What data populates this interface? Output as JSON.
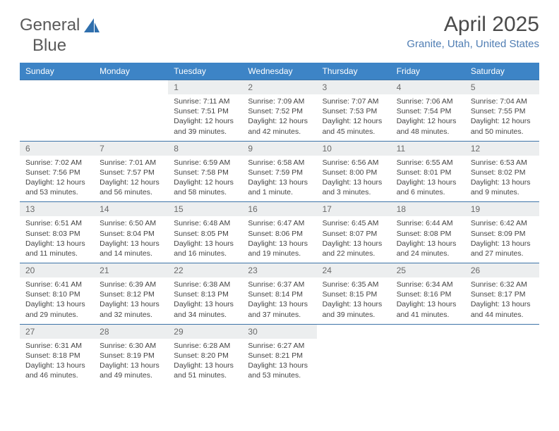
{
  "brand": {
    "part1": "General",
    "part2": "Blue"
  },
  "title": "April 2025",
  "location": "Granite, Utah, United States",
  "colors": {
    "header_bg": "#3d84c6",
    "header_text": "#ffffff",
    "row_border": "#3d74a8",
    "daynum_bg": "#eceeef",
    "location_text": "#4f7db3",
    "logo_blue": "#2f6fad"
  },
  "weekdays": [
    "Sunday",
    "Monday",
    "Tuesday",
    "Wednesday",
    "Thursday",
    "Friday",
    "Saturday"
  ],
  "weeks": [
    [
      {
        "empty": true
      },
      {
        "empty": true
      },
      {
        "num": "1",
        "sunrise": "Sunrise: 7:11 AM",
        "sunset": "Sunset: 7:51 PM",
        "daylight": "Daylight: 12 hours and 39 minutes."
      },
      {
        "num": "2",
        "sunrise": "Sunrise: 7:09 AM",
        "sunset": "Sunset: 7:52 PM",
        "daylight": "Daylight: 12 hours and 42 minutes."
      },
      {
        "num": "3",
        "sunrise": "Sunrise: 7:07 AM",
        "sunset": "Sunset: 7:53 PM",
        "daylight": "Daylight: 12 hours and 45 minutes."
      },
      {
        "num": "4",
        "sunrise": "Sunrise: 7:06 AM",
        "sunset": "Sunset: 7:54 PM",
        "daylight": "Daylight: 12 hours and 48 minutes."
      },
      {
        "num": "5",
        "sunrise": "Sunrise: 7:04 AM",
        "sunset": "Sunset: 7:55 PM",
        "daylight": "Daylight: 12 hours and 50 minutes."
      }
    ],
    [
      {
        "num": "6",
        "sunrise": "Sunrise: 7:02 AM",
        "sunset": "Sunset: 7:56 PM",
        "daylight": "Daylight: 12 hours and 53 minutes."
      },
      {
        "num": "7",
        "sunrise": "Sunrise: 7:01 AM",
        "sunset": "Sunset: 7:57 PM",
        "daylight": "Daylight: 12 hours and 56 minutes."
      },
      {
        "num": "8",
        "sunrise": "Sunrise: 6:59 AM",
        "sunset": "Sunset: 7:58 PM",
        "daylight": "Daylight: 12 hours and 58 minutes."
      },
      {
        "num": "9",
        "sunrise": "Sunrise: 6:58 AM",
        "sunset": "Sunset: 7:59 PM",
        "daylight": "Daylight: 13 hours and 1 minute."
      },
      {
        "num": "10",
        "sunrise": "Sunrise: 6:56 AM",
        "sunset": "Sunset: 8:00 PM",
        "daylight": "Daylight: 13 hours and 3 minutes."
      },
      {
        "num": "11",
        "sunrise": "Sunrise: 6:55 AM",
        "sunset": "Sunset: 8:01 PM",
        "daylight": "Daylight: 13 hours and 6 minutes."
      },
      {
        "num": "12",
        "sunrise": "Sunrise: 6:53 AM",
        "sunset": "Sunset: 8:02 PM",
        "daylight": "Daylight: 13 hours and 9 minutes."
      }
    ],
    [
      {
        "num": "13",
        "sunrise": "Sunrise: 6:51 AM",
        "sunset": "Sunset: 8:03 PM",
        "daylight": "Daylight: 13 hours and 11 minutes."
      },
      {
        "num": "14",
        "sunrise": "Sunrise: 6:50 AM",
        "sunset": "Sunset: 8:04 PM",
        "daylight": "Daylight: 13 hours and 14 minutes."
      },
      {
        "num": "15",
        "sunrise": "Sunrise: 6:48 AM",
        "sunset": "Sunset: 8:05 PM",
        "daylight": "Daylight: 13 hours and 16 minutes."
      },
      {
        "num": "16",
        "sunrise": "Sunrise: 6:47 AM",
        "sunset": "Sunset: 8:06 PM",
        "daylight": "Daylight: 13 hours and 19 minutes."
      },
      {
        "num": "17",
        "sunrise": "Sunrise: 6:45 AM",
        "sunset": "Sunset: 8:07 PM",
        "daylight": "Daylight: 13 hours and 22 minutes."
      },
      {
        "num": "18",
        "sunrise": "Sunrise: 6:44 AM",
        "sunset": "Sunset: 8:08 PM",
        "daylight": "Daylight: 13 hours and 24 minutes."
      },
      {
        "num": "19",
        "sunrise": "Sunrise: 6:42 AM",
        "sunset": "Sunset: 8:09 PM",
        "daylight": "Daylight: 13 hours and 27 minutes."
      }
    ],
    [
      {
        "num": "20",
        "sunrise": "Sunrise: 6:41 AM",
        "sunset": "Sunset: 8:10 PM",
        "daylight": "Daylight: 13 hours and 29 minutes."
      },
      {
        "num": "21",
        "sunrise": "Sunrise: 6:39 AM",
        "sunset": "Sunset: 8:12 PM",
        "daylight": "Daylight: 13 hours and 32 minutes."
      },
      {
        "num": "22",
        "sunrise": "Sunrise: 6:38 AM",
        "sunset": "Sunset: 8:13 PM",
        "daylight": "Daylight: 13 hours and 34 minutes."
      },
      {
        "num": "23",
        "sunrise": "Sunrise: 6:37 AM",
        "sunset": "Sunset: 8:14 PM",
        "daylight": "Daylight: 13 hours and 37 minutes."
      },
      {
        "num": "24",
        "sunrise": "Sunrise: 6:35 AM",
        "sunset": "Sunset: 8:15 PM",
        "daylight": "Daylight: 13 hours and 39 minutes."
      },
      {
        "num": "25",
        "sunrise": "Sunrise: 6:34 AM",
        "sunset": "Sunset: 8:16 PM",
        "daylight": "Daylight: 13 hours and 41 minutes."
      },
      {
        "num": "26",
        "sunrise": "Sunrise: 6:32 AM",
        "sunset": "Sunset: 8:17 PM",
        "daylight": "Daylight: 13 hours and 44 minutes."
      }
    ],
    [
      {
        "num": "27",
        "sunrise": "Sunrise: 6:31 AM",
        "sunset": "Sunset: 8:18 PM",
        "daylight": "Daylight: 13 hours and 46 minutes."
      },
      {
        "num": "28",
        "sunrise": "Sunrise: 6:30 AM",
        "sunset": "Sunset: 8:19 PM",
        "daylight": "Daylight: 13 hours and 49 minutes."
      },
      {
        "num": "29",
        "sunrise": "Sunrise: 6:28 AM",
        "sunset": "Sunset: 8:20 PM",
        "daylight": "Daylight: 13 hours and 51 minutes."
      },
      {
        "num": "30",
        "sunrise": "Sunrise: 6:27 AM",
        "sunset": "Sunset: 8:21 PM",
        "daylight": "Daylight: 13 hours and 53 minutes."
      },
      {
        "empty": true
      },
      {
        "empty": true
      },
      {
        "empty": true
      }
    ]
  ]
}
